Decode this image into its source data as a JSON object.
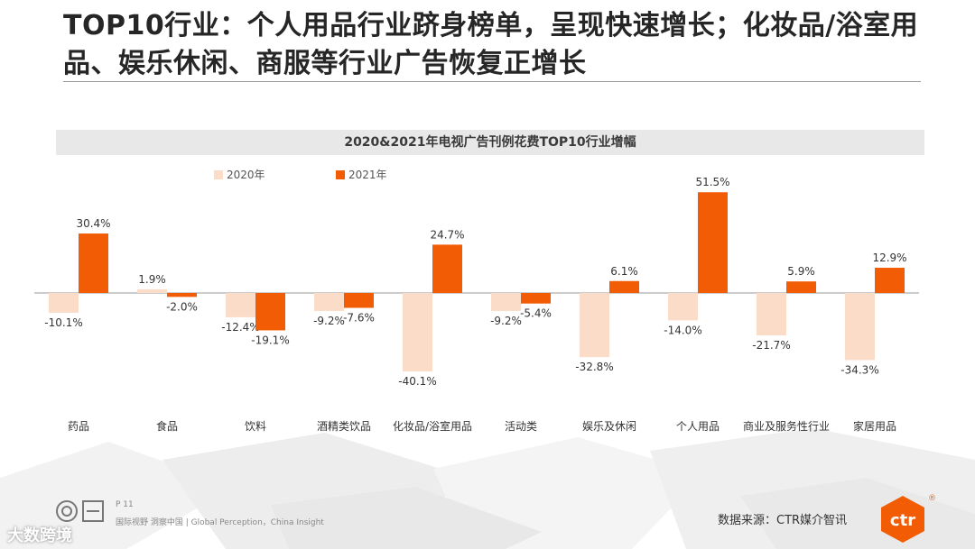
{
  "title": "TOP10行业：个人用品行业跻身榜单，呈现快速增长；化妆品/浴室用品、娱乐休闲、商服等行业广告恢复正增长",
  "chart_data": {
    "type": "bar",
    "title": "2020&2021年电视广告刊例花费TOP10行业增幅",
    "categories": [
      "药品",
      "食品",
      "饮料",
      "酒精类饮品",
      "化妆品/浴室用品",
      "活动类",
      "娱乐及休闲",
      "个人用品",
      "商业及服务性行业",
      "家居用品"
    ],
    "series": [
      {
        "name": "2020年",
        "color": "#fbdcc9",
        "values": [
          -10.1,
          1.9,
          -12.4,
          -9.2,
          -40.1,
          -9.2,
          -32.8,
          -14.0,
          -21.7,
          -34.3
        ],
        "labels": [
          "-10.1%",
          "1.9%",
          "-12.4%",
          "-9.2%",
          "-40.1%",
          "-9.2%",
          "-32.8%",
          "-14.0%",
          "-21.7%",
          "-34.3%"
        ]
      },
      {
        "name": "2021年",
        "color": "#f25c05",
        "values": [
          30.4,
          -2.0,
          -19.1,
          -7.6,
          24.7,
          -5.4,
          6.1,
          51.5,
          5.9,
          12.9
        ],
        "labels": [
          "30.4%",
          "-2.0%",
          "-19.1%",
          "-7.6%",
          "24.7%",
          "-5.4%",
          "6.1%",
          "51.5%",
          "5.9%",
          "12.9%"
        ]
      }
    ],
    "legend_position": "top-left",
    "grid": false
  },
  "footer": {
    "page": "P 11",
    "slogan": "国际视野  洞察中国 |  Global Perception，China Insight",
    "source": "数据来源：CTR媒介智讯",
    "logo_text": "ctr",
    "watermark": "大数跨境"
  },
  "colors": {
    "accent": "#f25c05",
    "light": "#fbdcc9"
  }
}
